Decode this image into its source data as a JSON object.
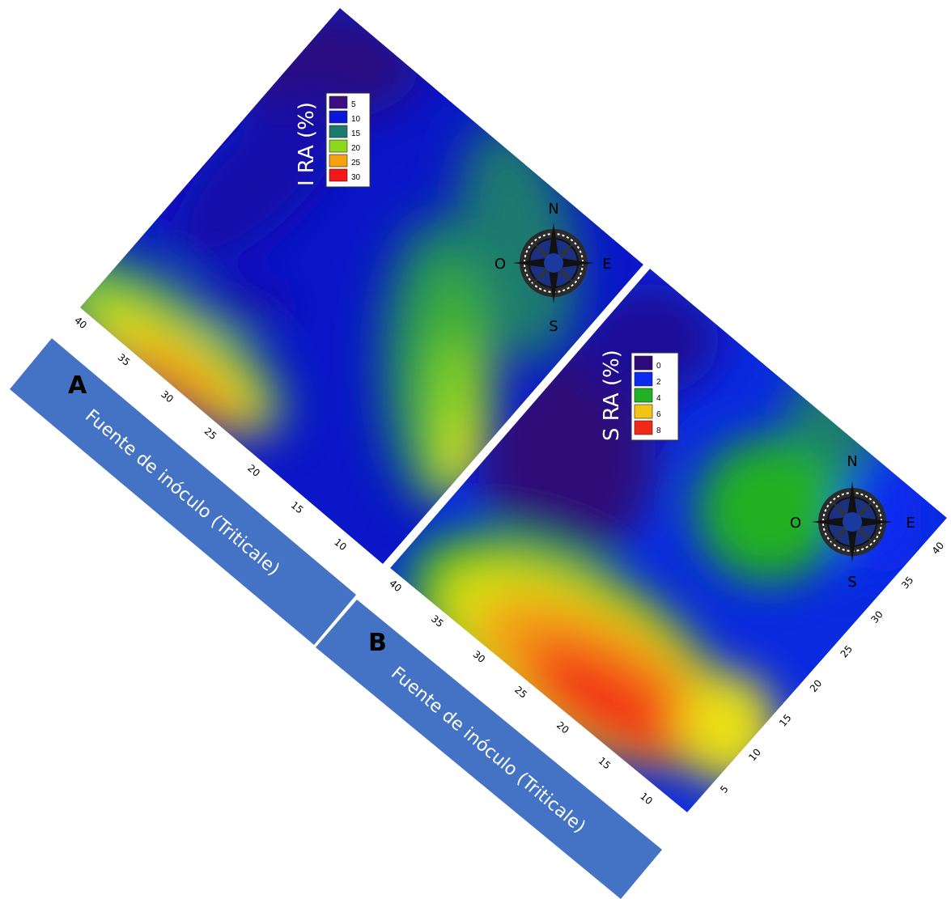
{
  "colors": {
    "band": "#4472c4",
    "band_text": "#ffffff"
  },
  "chart_data": [
    {
      "type": "heatmap",
      "panel_label": "A",
      "title": "I RA (%)",
      "source_label": "Fuente de inóculo (Triticale)",
      "axis_ticks": [
        "10",
        "15",
        "20",
        "25",
        "30",
        "35",
        "40"
      ],
      "legend": [
        {
          "label": "5",
          "color": "#3c1080"
        },
        {
          "label": "10",
          "color": "#0a16d8"
        },
        {
          "label": "15",
          "color": "#1a7a6e"
        },
        {
          "label": "20",
          "color": "#8ed81a"
        },
        {
          "label": "25",
          "color": "#f7a010"
        },
        {
          "label": "30",
          "color": "#f21818"
        }
      ],
      "compass": {
        "N": "N",
        "S": "S",
        "E": "E",
        "W": "O"
      }
    },
    {
      "type": "heatmap",
      "panel_label": "B",
      "title": "S RA (%)",
      "source_label": "Fuente de inóculo (Triticale)",
      "axis_ticks_left": [
        "10",
        "15",
        "20",
        "25",
        "30",
        "35",
        "40"
      ],
      "axis_ticks_right": [
        "5",
        "10",
        "15",
        "20",
        "25",
        "30",
        "35",
        "40"
      ],
      "legend": [
        {
          "label": "0",
          "color": "#2e0a78"
        },
        {
          "label": "2",
          "color": "#0a2af0"
        },
        {
          "label": "4",
          "color": "#22b024"
        },
        {
          "label": "6",
          "color": "#f2c414"
        },
        {
          "label": "8",
          "color": "#f22818"
        }
      ],
      "compass": {
        "N": "N",
        "S": "S",
        "E": "E",
        "W": "O"
      }
    }
  ]
}
